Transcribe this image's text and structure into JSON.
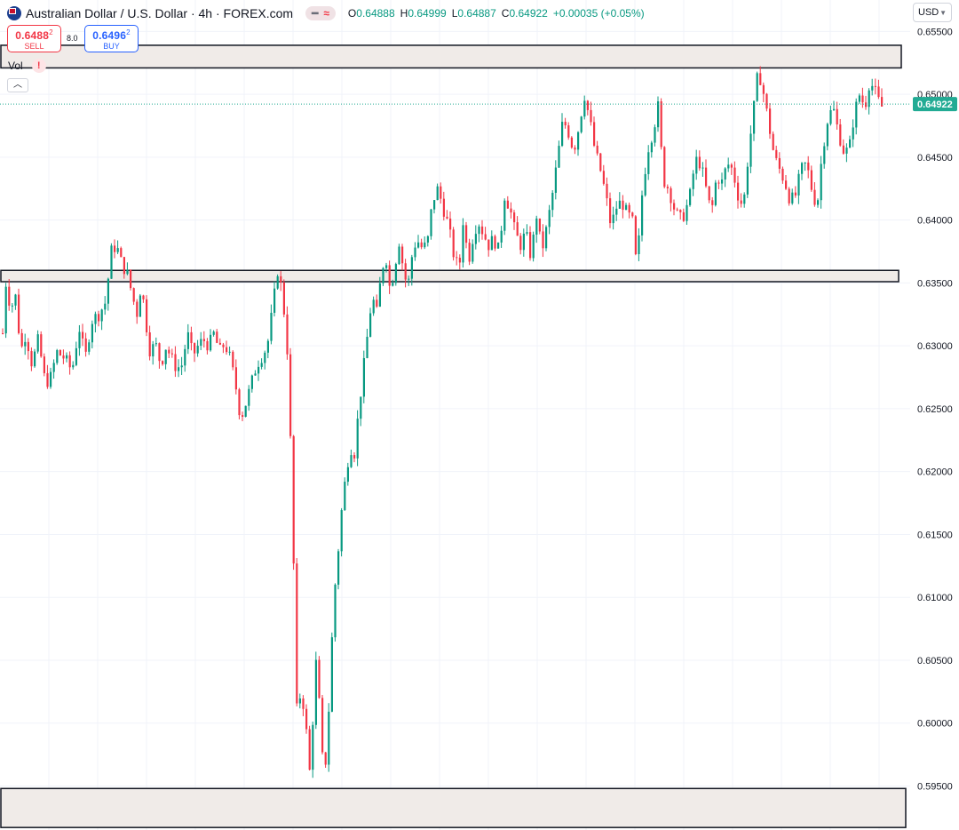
{
  "header": {
    "symbol_title": "Australian Dollar / U.S. Dollar · 4h · FOREX.com",
    "ohlc": [
      {
        "key": "O",
        "value": "0.64888"
      },
      {
        "key": "H",
        "value": "0.64999"
      },
      {
        "key": "L",
        "value": "0.64887"
      },
      {
        "key": "C",
        "value": "0.64922"
      }
    ],
    "change": "+0.00035 (+0.05%)"
  },
  "trade": {
    "sell_price": "0.6488",
    "sell_price_small": "2",
    "sell_label": "SELL",
    "spread": "8.0",
    "buy_price": "0.6496",
    "buy_price_small": "2",
    "buy_label": "BUY"
  },
  "volume": {
    "label": "Vol",
    "warning_symbol": "!"
  },
  "currency_selector": {
    "value": "USD"
  },
  "colors": {
    "up": "#089981",
    "down": "#f23645",
    "zone_fill": "#f0ebe8",
    "zone_border": "#131722",
    "price_line": "#22ab94"
  },
  "icons": [
    "australia-flag-icon",
    "chevron-up-icon",
    "chevron-down-icon",
    "warning-icon"
  ],
  "chart_data": {
    "type": "candlestick",
    "ylim": [
      0.5915,
      0.6575
    ],
    "y_ticks": [
      "0.65500",
      "0.65000",
      "0.64500",
      "0.64000",
      "0.63500",
      "0.63000",
      "0.62500",
      "0.62000",
      "0.61500",
      "0.61000",
      "0.60500",
      "0.60000",
      "0.59500"
    ],
    "last_price": "0.64922",
    "grid": true,
    "zones": [
      {
        "top": 0.6539,
        "bottom": 0.6521
      },
      {
        "top": 0.636,
        "bottom": 0.6351
      },
      {
        "top": 0.5948,
        "bottom": 0.5917
      }
    ],
    "path": [
      [
        0,
        0.6282
      ],
      [
        5,
        0.6352
      ],
      [
        11,
        0.633
      ],
      [
        17,
        0.634
      ],
      [
        22,
        0.6295
      ],
      [
        28,
        0.631
      ],
      [
        35,
        0.6285
      ],
      [
        42,
        0.6305
      ],
      [
        50,
        0.627
      ],
      [
        56,
        0.6275
      ],
      [
        63,
        0.6295
      ],
      [
        72,
        0.629
      ],
      [
        80,
        0.628
      ],
      [
        88,
        0.6315
      ],
      [
        95,
        0.629
      ],
      [
        102,
        0.632
      ],
      [
        110,
        0.6325
      ],
      [
        118,
        0.6335
      ],
      [
        124,
        0.6375
      ],
      [
        130,
        0.638
      ],
      [
        136,
        0.6365
      ],
      [
        142,
        0.6358
      ],
      [
        148,
        0.634
      ],
      [
        153,
        0.6325
      ],
      [
        158,
        0.635
      ],
      [
        163,
        0.632
      ],
      [
        168,
        0.6295
      ],
      [
        174,
        0.6302
      ],
      [
        180,
        0.6285
      ],
      [
        186,
        0.63
      ],
      [
        192,
        0.629
      ],
      [
        198,
        0.6282
      ],
      [
        204,
        0.6285
      ],
      [
        210,
        0.631
      ],
      [
        216,
        0.6292
      ],
      [
        222,
        0.63
      ],
      [
        228,
        0.6305
      ],
      [
        234,
        0.63
      ],
      [
        240,
        0.631
      ],
      [
        246,
        0.6295
      ],
      [
        252,
        0.6302
      ],
      [
        258,
        0.629
      ],
      [
        264,
        0.627
      ],
      [
        270,
        0.6242
      ],
      [
        276,
        0.6255
      ],
      [
        282,
        0.627
      ],
      [
        288,
        0.6285
      ],
      [
        294,
        0.6292
      ],
      [
        300,
        0.63
      ],
      [
        306,
        0.633
      ],
      [
        312,
        0.6362
      ],
      [
        317,
        0.634
      ],
      [
        322,
        0.6305
      ],
      [
        326,
        0.6225
      ],
      [
        330,
        0.6115
      ],
      [
        333,
        0.601
      ],
      [
        338,
        0.6025
      ],
      [
        343,
        0.6005
      ],
      [
        347,
        0.5955
      ],
      [
        351,
        0.6
      ],
      [
        355,
        0.605
      ],
      [
        359,
        0.601
      ],
      [
        363,
        0.596
      ],
      [
        367,
        0.5975
      ],
      [
        371,
        0.604
      ],
      [
        375,
        0.61
      ],
      [
        379,
        0.613
      ],
      [
        383,
        0.6165
      ],
      [
        388,
        0.6195
      ],
      [
        393,
        0.622
      ],
      [
        398,
        0.6215
      ],
      [
        403,
        0.625
      ],
      [
        408,
        0.628
      ],
      [
        413,
        0.631
      ],
      [
        418,
        0.634
      ],
      [
        423,
        0.6325
      ],
      [
        428,
        0.6355
      ],
      [
        433,
        0.6375
      ],
      [
        438,
        0.6345
      ],
      [
        443,
        0.636
      ],
      [
        448,
        0.6385
      ],
      [
        453,
        0.6362
      ],
      [
        458,
        0.6345
      ],
      [
        463,
        0.6372
      ],
      [
        468,
        0.6385
      ],
      [
        474,
        0.6378
      ],
      [
        480,
        0.638
      ],
      [
        486,
        0.6415
      ],
      [
        492,
        0.6425
      ],
      [
        498,
        0.641
      ],
      [
        504,
        0.6395
      ],
      [
        510,
        0.6372
      ],
      [
        516,
        0.636
      ],
      [
        521,
        0.6405
      ],
      [
        526,
        0.6365
      ],
      [
        531,
        0.6385
      ],
      [
        537,
        0.64
      ],
      [
        543,
        0.639
      ],
      [
        549,
        0.638
      ],
      [
        555,
        0.6385
      ],
      [
        561,
        0.6375
      ],
      [
        567,
        0.642
      ],
      [
        573,
        0.641
      ],
      [
        579,
        0.639
      ],
      [
        585,
        0.638
      ],
      [
        591,
        0.639
      ],
      [
        597,
        0.637
      ],
      [
        603,
        0.6405
      ],
      [
        609,
        0.6375
      ],
      [
        615,
        0.6395
      ],
      [
        621,
        0.642
      ],
      [
        627,
        0.645
      ],
      [
        633,
        0.648
      ],
      [
        639,
        0.647
      ],
      [
        645,
        0.6455
      ],
      [
        651,
        0.6475
      ],
      [
        657,
        0.65
      ],
      [
        663,
        0.648
      ],
      [
        669,
        0.6455
      ],
      [
        675,
        0.644
      ],
      [
        681,
        0.642
      ],
      [
        687,
        0.6395
      ],
      [
        693,
        0.641
      ],
      [
        699,
        0.6415
      ],
      [
        705,
        0.6405
      ],
      [
        711,
        0.64
      ],
      [
        716,
        0.636
      ],
      [
        722,
        0.642
      ],
      [
        728,
        0.6455
      ],
      [
        734,
        0.647
      ],
      [
        740,
        0.649
      ],
      [
        746,
        0.6432
      ],
      [
        752,
        0.6425
      ],
      [
        758,
        0.641
      ],
      [
        764,
        0.64
      ],
      [
        770,
        0.6405
      ],
      [
        776,
        0.642
      ],
      [
        782,
        0.6448
      ],
      [
        788,
        0.6445
      ],
      [
        794,
        0.6425
      ],
      [
        800,
        0.6405
      ],
      [
        806,
        0.6435
      ],
      [
        812,
        0.643
      ],
      [
        818,
        0.6445
      ],
      [
        824,
        0.644
      ],
      [
        830,
        0.642
      ],
      [
        836,
        0.641
      ],
      [
        842,
        0.6455
      ],
      [
        848,
        0.649
      ],
      [
        853,
        0.652
      ],
      [
        859,
        0.65
      ],
      [
        865,
        0.6475
      ],
      [
        871,
        0.645
      ],
      [
        877,
        0.644
      ],
      [
        883,
        0.643
      ],
      [
        889,
        0.6415
      ],
      [
        895,
        0.642
      ],
      [
        901,
        0.644
      ],
      [
        907,
        0.6445
      ],
      [
        913,
        0.6425
      ],
      [
        919,
        0.641
      ],
      [
        925,
        0.6455
      ],
      [
        931,
        0.648
      ],
      [
        937,
        0.649
      ],
      [
        943,
        0.647
      ],
      [
        949,
        0.6455
      ],
      [
        955,
        0.6455
      ],
      [
        961,
        0.6485
      ],
      [
        967,
        0.65
      ],
      [
        973,
        0.649
      ],
      [
        978,
        0.651
      ],
      [
        983,
        0.6505
      ],
      [
        988,
        0.6495
      ],
      [
        993,
        0.6489
      ]
    ]
  }
}
